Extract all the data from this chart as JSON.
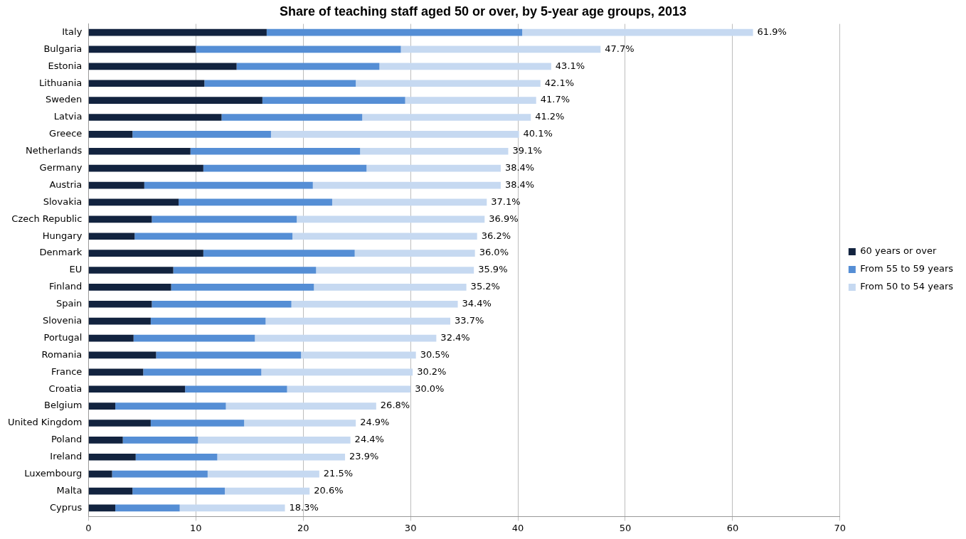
{
  "chart_data": {
    "type": "bar",
    "orientation": "horizontal",
    "stacked": true,
    "title": "Share of teaching staff aged 50 or over, by 5-year age groups, 2013",
    "categories": [
      "Italy",
      "Bulgaria",
      "Estonia",
      "Lithuania",
      "Sweden",
      "Latvia",
      "Greece",
      "Netherlands",
      "Germany",
      "Austria",
      "Slovakia",
      "Czech Republic",
      "Hungary",
      "Denmark",
      "EU",
      "Finland",
      "Spain",
      "Slovenia",
      "Portugal",
      "Romania",
      "France",
      "Croatia",
      "Belgium",
      "United Kingdom",
      "Poland",
      "Ireland",
      "Luxembourg",
      "Malta",
      "Cyprus"
    ],
    "series": [
      {
        "name": "60 years or over",
        "color": "#12233f",
        "values": [
          16.6,
          10.0,
          13.8,
          10.8,
          16.2,
          12.4,
          4.1,
          9.5,
          10.7,
          5.2,
          8.4,
          5.9,
          4.3,
          10.7,
          7.9,
          7.7,
          5.9,
          5.8,
          4.2,
          6.3,
          5.1,
          9.0,
          2.5,
          5.8,
          3.2,
          4.4,
          2.2,
          4.1,
          2.5
        ]
      },
      {
        "name": "From 55 to 59 years",
        "color": "#558ed5",
        "values": [
          23.8,
          19.1,
          13.3,
          14.1,
          13.3,
          13.1,
          12.9,
          15.8,
          15.2,
          15.7,
          14.3,
          13.5,
          14.7,
          14.1,
          13.3,
          13.3,
          13.0,
          10.7,
          11.3,
          13.5,
          11.0,
          9.5,
          10.3,
          8.7,
          7.0,
          7.6,
          8.9,
          8.6,
          6.0
        ]
      },
      {
        "name": "From 50 to 54 years",
        "color": "#c6d9f1",
        "values": [
          21.5,
          18.6,
          16.0,
          17.2,
          12.2,
          15.7,
          23.1,
          13.8,
          12.5,
          17.5,
          14.4,
          17.5,
          17.2,
          11.2,
          14.7,
          14.2,
          15.5,
          17.2,
          16.9,
          10.7,
          14.1,
          11.5,
          14.0,
          10.4,
          14.2,
          11.9,
          10.4,
          7.9,
          9.8
        ]
      }
    ],
    "totals": [
      "61.9%",
      "47.7%",
      "43.1%",
      "42.1%",
      "41.7%",
      "41.2%",
      "40.1%",
      "39.1%",
      "38.4%",
      "38.4%",
      "37.1%",
      "36.9%",
      "36.2%",
      "36.0%",
      "35.9%",
      "35.2%",
      "34.4%",
      "33.7%",
      "32.4%",
      "30.5%",
      "30.2%",
      "30.0%",
      "26.8%",
      "24.9%",
      "24.4%",
      "23.9%",
      "21.5%",
      "20.6%",
      "18.3%"
    ],
    "xlim": [
      0,
      70
    ],
    "xticks": [
      0,
      10,
      20,
      30,
      40,
      50,
      60,
      70
    ],
    "grid": "x",
    "legend": "right"
  }
}
